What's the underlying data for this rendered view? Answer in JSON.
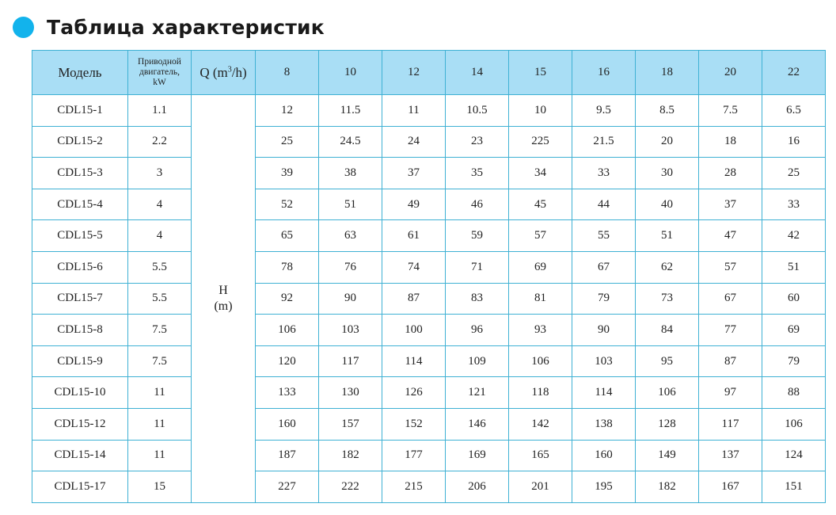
{
  "title": "Таблица характеристик",
  "accent_color": "#12b3ec",
  "header": {
    "model": "Модель",
    "motor_line1": "Приводной",
    "motor_line2": "двигатель,",
    "motor_line3": "kW",
    "q_prefix": "Q (m",
    "q_sup": "3",
    "q_suffix": "/h)",
    "flows": [
      "8",
      "10",
      "12",
      "14",
      "15",
      "16",
      "18",
      "20",
      "22"
    ]
  },
  "head_label_line1": "H",
  "head_label_line2": "(m)",
  "rows": [
    {
      "model": "CDL15-1",
      "power": "1.1",
      "values": [
        "12",
        "11.5",
        "11",
        "10.5",
        "10",
        "9.5",
        "8.5",
        "7.5",
        "6.5"
      ]
    },
    {
      "model": "CDL15-2",
      "power": "2.2",
      "values": [
        "25",
        "24.5",
        "24",
        "23",
        "225",
        "21.5",
        "20",
        "18",
        "16"
      ]
    },
    {
      "model": "CDL15-3",
      "power": "3",
      "values": [
        "39",
        "38",
        "37",
        "35",
        "34",
        "33",
        "30",
        "28",
        "25"
      ]
    },
    {
      "model": "CDL15-4",
      "power": "4",
      "values": [
        "52",
        "51",
        "49",
        "46",
        "45",
        "44",
        "40",
        "37",
        "33"
      ]
    },
    {
      "model": "CDL15-5",
      "power": "4",
      "values": [
        "65",
        "63",
        "61",
        "59",
        "57",
        "55",
        "51",
        "47",
        "42"
      ]
    },
    {
      "model": "CDL15-6",
      "power": "5.5",
      "values": [
        "78",
        "76",
        "74",
        "71",
        "69",
        "67",
        "62",
        "57",
        "51"
      ]
    },
    {
      "model": "CDL15-7",
      "power": "5.5",
      "values": [
        "92",
        "90",
        "87",
        "83",
        "81",
        "79",
        "73",
        "67",
        "60"
      ]
    },
    {
      "model": "CDL15-8",
      "power": "7.5",
      "values": [
        "106",
        "103",
        "100",
        "96",
        "93",
        "90",
        "84",
        "77",
        "69"
      ]
    },
    {
      "model": "CDL15-9",
      "power": "7.5",
      "values": [
        "120",
        "117",
        "114",
        "109",
        "106",
        "103",
        "95",
        "87",
        "79"
      ]
    },
    {
      "model": "CDL15-10",
      "power": "11",
      "values": [
        "133",
        "130",
        "126",
        "121",
        "118",
        "114",
        "106",
        "97",
        "88"
      ]
    },
    {
      "model": "CDL15-12",
      "power": "11",
      "values": [
        "160",
        "157",
        "152",
        "146",
        "142",
        "138",
        "128",
        "117",
        "106"
      ]
    },
    {
      "model": "CDL15-14",
      "power": "11",
      "values": [
        "187",
        "182",
        "177",
        "169",
        "165",
        "160",
        "149",
        "137",
        "124"
      ]
    },
    {
      "model": "CDL15-17",
      "power": "15",
      "values": [
        "227",
        "222",
        "215",
        "206",
        "201",
        "195",
        "182",
        "167",
        "151"
      ]
    }
  ]
}
